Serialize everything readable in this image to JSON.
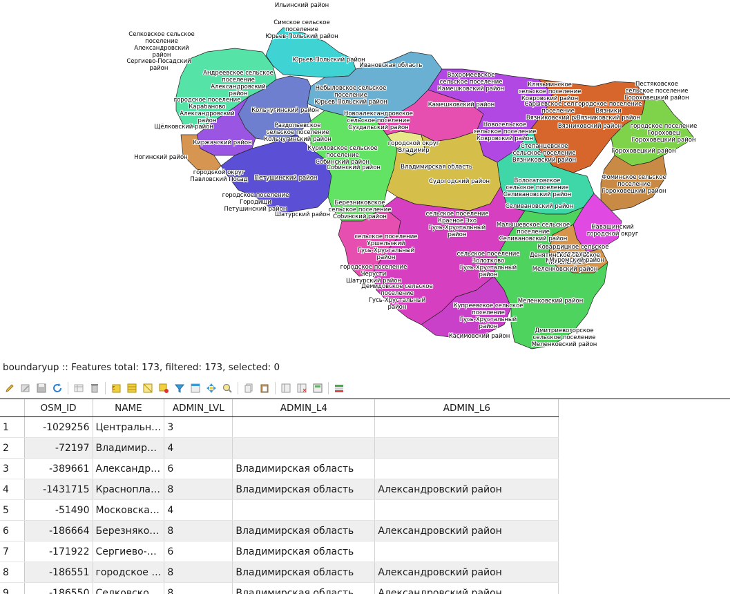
{
  "map": {
    "labels": [
      {
        "text": "Ильинский район",
        "color": "#000000"
      },
      {
        "text": "Симское сельское\nпоселение\nЮрьев-Польский район",
        "color": "#000000"
      },
      {
        "text": "Селковское сельское\nпоселение\nАлександровский\nрайон",
        "color": "#000000"
      },
      {
        "text": "Сергиево-Посадский\nрайон",
        "color": "#000000"
      },
      {
        "text": "Юрьев-Польский район",
        "color": "#000000"
      },
      {
        "text": "Ивановская область",
        "color": "#000000"
      },
      {
        "text": "Андреевское сельское\nпоселение\nАлександровский\nрайон",
        "color": "#000000"
      },
      {
        "text": "Небыловское сельское\nпоселение\nЮрьев-Польский район",
        "color": "#000000"
      },
      {
        "text": "Вахромеевское\nсельское поселение\nКамешковский район",
        "color": "#000000"
      },
      {
        "text": "Клязьминское\nсельское поселение\nКовровский район",
        "color": "#000000"
      },
      {
        "text": "Пестяковское\nсельское поселение\nГороховецкий район",
        "color": "#000000"
      },
      {
        "text": "Сарыевское сельское\nпоселение\nВязниковский район",
        "color": "#000000"
      },
      {
        "text": "городское поселение\nВязники\nВязниковский район",
        "color": "#000000"
      },
      {
        "text": "городское поселение\nКарабаново\nАлександровский\nрайон",
        "color": "#000000"
      },
      {
        "text": "Кольчугинский район",
        "color": "#000000"
      },
      {
        "text": "Камешковский район",
        "color": "#000000"
      },
      {
        "text": "Новоалександровское\nсельское поселение\nСуздальский район",
        "color": "#000000"
      },
      {
        "text": "Новосельское\nсельское поселение\nКовровский район",
        "color": "#000000"
      },
      {
        "text": "Вязниковский район",
        "color": "#000000"
      },
      {
        "text": "городское поселение\nГороховец\nГороховецкий район",
        "color": "#000000"
      },
      {
        "text": "Щёлковский район",
        "color": "#000000"
      },
      {
        "text": "Раздольевское\nсельское поселение\nКольчугинский район",
        "color": "#000000"
      },
      {
        "text": "Киржачский район",
        "color": "#000000"
      },
      {
        "text": "Куриловское сельское\nпоселение\nСобинский район",
        "color": "#000000"
      },
      {
        "text": "городской округ\nВладимир",
        "color": "#000000"
      },
      {
        "text": "Степанцевское\nсельское поселение\nВязниковский район",
        "color": "#000000"
      },
      {
        "text": "Гороховецкий район",
        "color": "#000000"
      },
      {
        "text": "Ногинский район",
        "color": "#000000"
      },
      {
        "text": "Собинский район",
        "color": "#000000"
      },
      {
        "text": "Владимирская область",
        "color": "#000000"
      },
      {
        "text": "городской округ\nПавловский Посад",
        "color": "#000000"
      },
      {
        "text": "Петушинский район",
        "color": "#000000"
      },
      {
        "text": "Судогодский район",
        "color": "#000000"
      },
      {
        "text": "Волосатовское\nсельское поселение\nСеливановский район",
        "color": "#000000"
      },
      {
        "text": "Фоминское сельское\nпоселение\nГороховецкий район",
        "color": "#000000"
      },
      {
        "text": "городское поселение\nГородищи\nПетушинский район",
        "color": "#000000"
      },
      {
        "text": "Березниковское\nсельское поселение\nСобинский район",
        "color": "#000000"
      },
      {
        "text": "Селивановский район",
        "color": "#000000"
      },
      {
        "text": "Шатурский район",
        "color": "#000000"
      },
      {
        "text": "сельское поселение\nКрасное Эхо\nГусь-Хрустальный\nрайон",
        "color": "#000000"
      },
      {
        "text": "Навашинский\nгородской округ",
        "color": "#000000"
      },
      {
        "text": "Малышевское сельское\nпоселение\nСеливановский район",
        "color": "#000000"
      },
      {
        "text": "сельское поселение\nУршельский\nГусь-Хрустальный\nрайон",
        "color": "#000000"
      },
      {
        "text": "Ковардицкое сельское\nпоселение\nМуромский район",
        "color": "#000000"
      },
      {
        "text": "сельское поселение\nЗолотково\nГусь-Хрустальный\nрайон",
        "color": "#000000"
      },
      {
        "text": "Денятинское сельское\nпоселение\nМеленковский район",
        "color": "#000000"
      },
      {
        "text": "Муромский район",
        "color": "#000000"
      },
      {
        "text": "городское поселение\nЧерусти\nШатурский район",
        "color": "#000000"
      },
      {
        "text": "Демидовское сельское\nпоселение\nГусь-Хрустальный\nрайон",
        "color": "#000000"
      },
      {
        "text": "Меленковский район",
        "color": "#000000"
      },
      {
        "text": "Купреевское сельское\nпоселение\nГусь-Хрустальный\nрайон",
        "color": "#000000"
      },
      {
        "text": "Дмитриевогорское\nсельское поселение\nМеленковский район",
        "color": "#000000"
      },
      {
        "text": "Касимовский район",
        "color": "#000000"
      }
    ]
  },
  "layer_title": "boundaryup :: Features total: 173, filtered: 173, selected: 0",
  "toolbar": {
    "icons": [
      "pencil-icon",
      "multi-edit-icon",
      "save-icon",
      "reload-icon",
      "add-feature-icon",
      "delete-icon",
      "expression-select-icon",
      "select-all-icon",
      "invert-selection-icon",
      "deselect-icon",
      "filter-icon",
      "move-top-icon",
      "pan-to-icon",
      "zoom-to-icon",
      "copy-icon",
      "paste-icon",
      "new-field-icon",
      "delete-field-icon",
      "field-calculator-icon",
      "conditional-format-icon"
    ]
  },
  "table": {
    "columns": [
      "OSM_ID",
      "NAME",
      "ADMIN_LVL",
      "ADMIN_L4",
      "ADMIN_L6"
    ],
    "rows": [
      {
        "n": "1",
        "osm_id": "-1029256",
        "name": "Центральн…",
        "admin_lvl": "3",
        "admin_l4": "",
        "admin_l6": ""
      },
      {
        "n": "2",
        "osm_id": "-72197",
        "name": "Владимир…",
        "admin_lvl": "4",
        "admin_l4": "",
        "admin_l6": ""
      },
      {
        "n": "3",
        "osm_id": "-389661",
        "name": "Александр…",
        "admin_lvl": "6",
        "admin_l4": "Владимирская область",
        "admin_l6": ""
      },
      {
        "n": "4",
        "osm_id": "-1431715",
        "name": "Краснопла…",
        "admin_lvl": "8",
        "admin_l4": "Владимирская область",
        "admin_l6": "Александровский район"
      },
      {
        "n": "5",
        "osm_id": "-51490",
        "name": "Московска…",
        "admin_lvl": "4",
        "admin_l4": "",
        "admin_l6": ""
      },
      {
        "n": "6",
        "osm_id": "-186664",
        "name": "Березняко…",
        "admin_lvl": "8",
        "admin_l4": "Владимирская область",
        "admin_l6": "Александровский район"
      },
      {
        "n": "7",
        "osm_id": "-171922",
        "name": "Сергиево-…",
        "admin_lvl": "6",
        "admin_l4": "Владимирская область",
        "admin_l6": ""
      },
      {
        "n": "8",
        "osm_id": "-186551",
        "name": "городское …",
        "admin_lvl": "8",
        "admin_l4": "Владимирская область",
        "admin_l6": "Александровский район"
      },
      {
        "n": "9",
        "osm_id": "-186550",
        "name": "Селковско…",
        "admin_lvl": "8",
        "admin_l4": "Владимирская область",
        "admin_l6": "Александровский район"
      }
    ]
  }
}
